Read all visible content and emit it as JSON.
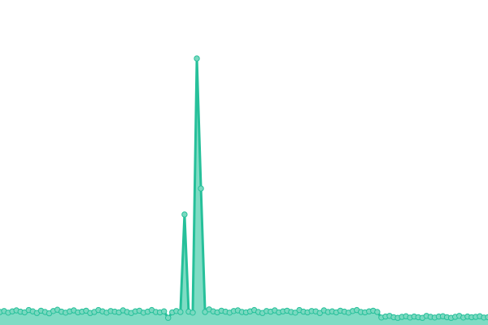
{
  "chart_data": {
    "type": "area",
    "color": "#26c09a",
    "fill_color": "#7fdcc4",
    "marker_color": "#7ad9c0",
    "ylim": [
      0,
      100
    ],
    "values": [
      4.0,
      4.3,
      3.8,
      4.2,
      4.5,
      4.1,
      3.9,
      4.6,
      4.2,
      3.7,
      4.4,
      4.0,
      3.6,
      4.3,
      4.7,
      4.1,
      3.8,
      4.2,
      4.5,
      3.9,
      4.1,
      4.4,
      3.7,
      4.0,
      4.6,
      4.2,
      3.8,
      4.3,
      4.1,
      3.9,
      4.5,
      4.0,
      3.7,
      4.2,
      4.4,
      3.8,
      4.1,
      4.6,
      4.0,
      3.9,
      4.2,
      2.2,
      3.9,
      4.3,
      4.0,
      34,
      4.1,
      3.8,
      82,
      42,
      4.0,
      4.8,
      4.2,
      3.9,
      4.4,
      4.1,
      3.8,
      4.3,
      4.5,
      4.0,
      3.9,
      4.2,
      4.6,
      4.0,
      3.7,
      4.3,
      4.1,
      4.5,
      3.9,
      4.2,
      4.4,
      4.0,
      3.8,
      4.6,
      4.1,
      3.9,
      4.3,
      4.2,
      3.7,
      4.5,
      4.0,
      4.2,
      3.9,
      4.4,
      4.1,
      3.8,
      4.3,
      4.6,
      4.0,
      3.9,
      4.2,
      4.4,
      4.0,
      2.3,
      2.6,
      2.8,
      2.4,
      2.2,
      2.5,
      2.7,
      2.3,
      2.6,
      2.4,
      2.2,
      2.8,
      2.5,
      2.3,
      2.6,
      2.7,
      2.4,
      2.2,
      2.5,
      2.8,
      2.3,
      2.6,
      2.4,
      2.5,
      2.7,
      2.3,
      2.4
    ]
  }
}
